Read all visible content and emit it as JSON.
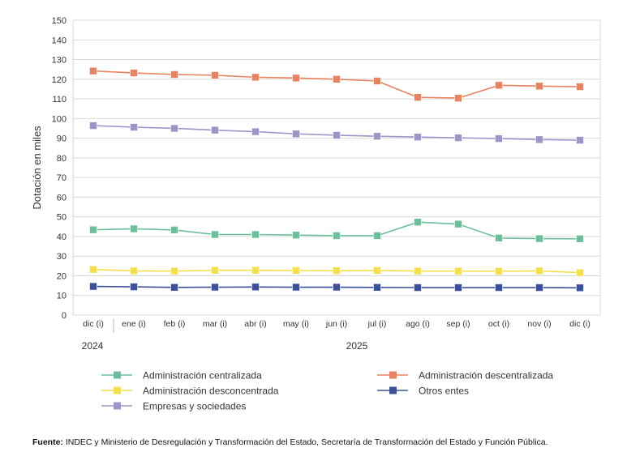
{
  "chart_data": {
    "type": "line",
    "title": "",
    "xlabel": "",
    "ylabel": "Dotación en miles",
    "ylim": [
      0,
      150
    ],
    "yticks": [
      0,
      10,
      20,
      30,
      40,
      50,
      60,
      70,
      80,
      90,
      100,
      110,
      120,
      130,
      140,
      150
    ],
    "grid": true,
    "legend_placement": "bottom",
    "categories": [
      "dic (i)",
      "ene (i)",
      "feb (i)",
      "mar (i)",
      "abr (i)",
      "may (i)",
      "jun (i)",
      "jul (i)",
      "ago (i)",
      "sep (i)",
      "oct (i)",
      "nov (i)",
      "dic (i)"
    ],
    "year_labels": [
      {
        "label": "2024",
        "start_index": 0
      },
      {
        "label": "2025",
        "start_index": 1
      }
    ],
    "series": [
      {
        "name": "Administración centralizada",
        "color": "#6cbf9b",
        "values": [
          43.4,
          43.9,
          43.3,
          41.0,
          41.0,
          40.7,
          40.4,
          40.4,
          47.3,
          46.3,
          39.2,
          38.9,
          38.8
        ]
      },
      {
        "name": "Administración descentralizada",
        "color": "#e9825f",
        "values": [
          124.2,
          123.2,
          122.4,
          122.0,
          121.0,
          120.6,
          120.0,
          119.1,
          110.8,
          110.4,
          116.9,
          116.5,
          116.2
        ]
      },
      {
        "name": "Administración desconcentrada",
        "color": "#f6e04a",
        "values": [
          23.2,
          22.5,
          22.4,
          22.8,
          22.8,
          22.7,
          22.6,
          22.7,
          22.4,
          22.4,
          22.3,
          22.5,
          21.6
        ]
      },
      {
        "name": "Otros entes",
        "color": "#3a509b",
        "values": [
          14.6,
          14.4,
          14.1,
          14.2,
          14.3,
          14.2,
          14.2,
          14.1,
          14.0,
          14.0,
          14.0,
          14.0,
          13.9
        ]
      },
      {
        "name": "Empresas y sociedades",
        "color": "#9b96c8",
        "values": [
          96.4,
          95.6,
          95.0,
          94.1,
          93.3,
          92.2,
          91.5,
          91.0,
          90.6,
          90.2,
          89.8,
          89.3,
          89.0
        ]
      }
    ]
  },
  "source": {
    "label": "Fuente:",
    "text": " INDEC y Ministerio de Desregulación y Transformación del Estado, Secretaría de Transformación del Estado y Función Pública."
  }
}
